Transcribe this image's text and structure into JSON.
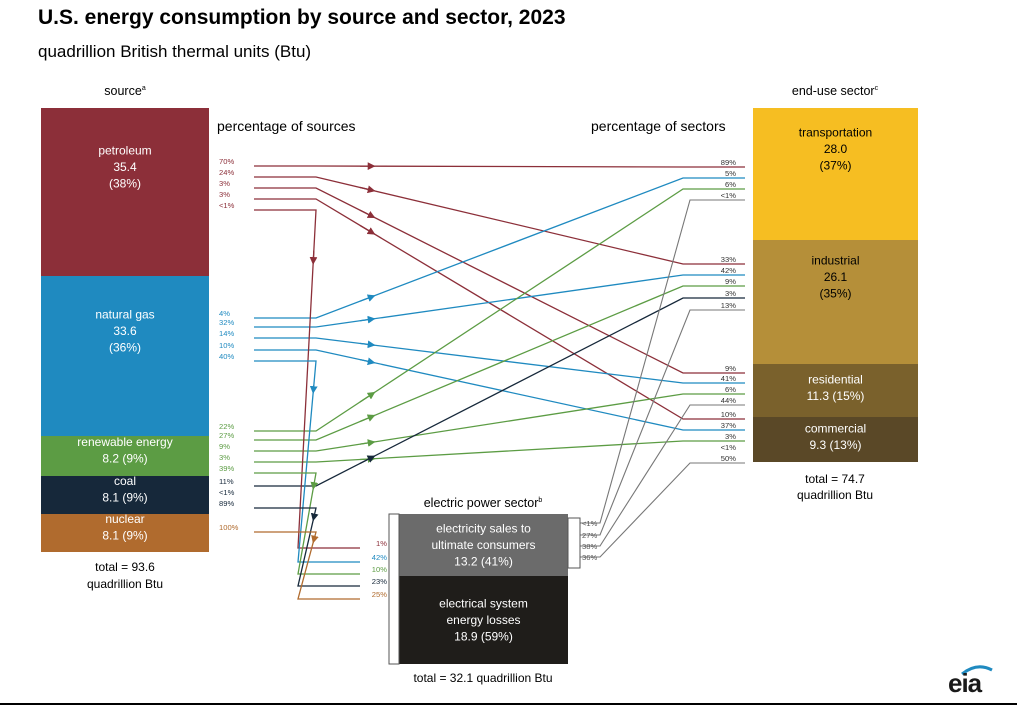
{
  "title": "U.S. energy consumption by source and sector, 2023",
  "subtitle": "quadrillion British thermal units (Btu)",
  "source_header": "source",
  "source_header_sup": "a",
  "sector_header": "end-use sector",
  "sector_header_sup": "c",
  "electric_header": "electric power sector",
  "electric_header_sup": "b",
  "pct_sources_label": "percentage of sources",
  "pct_sectors_label": "percentage of sectors",
  "sources": [
    {
      "id": "petroleum",
      "lines": [
        "petroleum",
        "35.4",
        "(38%)"
      ],
      "color": "#8c2f39",
      "flows": [
        "70%",
        "24%",
        "3%",
        "3%",
        "<1%"
      ]
    },
    {
      "id": "natural-gas",
      "lines": [
        "natural gas",
        "33.6",
        "(36%)"
      ],
      "color": "#1f8ac0",
      "flows": [
        "4%",
        "32%",
        "14%",
        "10%",
        "40%"
      ]
    },
    {
      "id": "renewable",
      "lines": [
        "renewable energy",
        "8.2 (9%)"
      ],
      "color": "#5c9c44",
      "flows": [
        "22%",
        "27%",
        "9%",
        "3%",
        "39%"
      ]
    },
    {
      "id": "coal",
      "lines": [
        "coal",
        "8.1 (9%)"
      ],
      "color": "#16283a",
      "flows": [
        "11%",
        "<1%",
        "89%"
      ]
    },
    {
      "id": "nuclear",
      "lines": [
        "nuclear",
        "8.1 (9%)"
      ],
      "color": "#b06b2e",
      "flows": [
        "100%"
      ]
    }
  ],
  "source_total": [
    "total = 93.6",
    "quadrillion Btu"
  ],
  "sectors": [
    {
      "id": "transportation",
      "lines": [
        "transportation",
        "28.0",
        "(37%)"
      ],
      "color": "#f6be22",
      "flows": [
        "89%",
        "5%",
        "6%",
        "<1%"
      ]
    },
    {
      "id": "industrial",
      "lines": [
        "industrial",
        "26.1",
        "(35%)"
      ],
      "color": "#b58f39",
      "flows": [
        "33%",
        "42%",
        "9%",
        "3%",
        "13%"
      ]
    },
    {
      "id": "residential",
      "lines": [
        "residential",
        "11.3 (15%)"
      ],
      "color": "#7a612c",
      "flows": [
        "9%",
        "41%",
        "6%",
        "44%"
      ]
    },
    {
      "id": "commercial",
      "lines": [
        "commercial",
        "9.3 (13%)"
      ],
      "color": "#5a4827",
      "flows": [
        "10%",
        "37%",
        "3%",
        "<1%",
        "50%"
      ]
    }
  ],
  "sector_total": [
    "total = 74.7",
    "quadrillion Btu"
  ],
  "electric": {
    "sales_lines": [
      "electricity sales to",
      "ultimate consumers",
      "13.2 (41%)"
    ],
    "losses_lines": [
      "electrical system",
      "energy losses",
      "18.9 (59%)"
    ],
    "sales_color": "#6b6b6b",
    "losses_color": "#1f1d1a",
    "input_pcts": [
      "1%",
      "42%",
      "10%",
      "23%",
      "25%"
    ],
    "output_pcts": [
      "<1%",
      "27%",
      "38%",
      "36%"
    ],
    "total": "total = 32.1 quadrillion Btu"
  },
  "logo": "eia"
}
